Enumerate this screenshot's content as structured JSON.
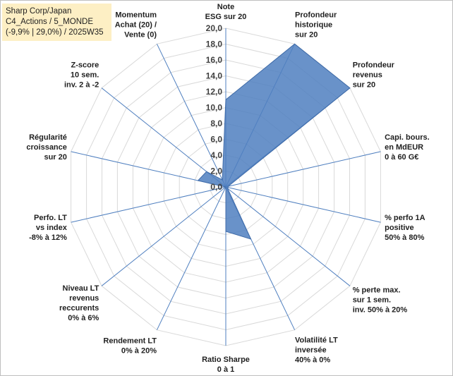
{
  "info": {
    "line1": "Sharp Corp/Japan",
    "line2": "C4_Actions / 5_MONDE",
    "line3": "(-9,9% | 29,0%) / 2025W35"
  },
  "chart_data": {
    "type": "radar",
    "rmin": 0,
    "rmax": 20,
    "tick_step": 2,
    "ticks": [
      "0,0",
      "2,0",
      "4,0",
      "6,0",
      "8,0",
      "10,0",
      "12,0",
      "14,0",
      "16,0",
      "18,0",
      "20,0"
    ],
    "grid": true,
    "axes": [
      {
        "label": [
          "Note",
          "ESG sur 20"
        ],
        "value": 11
      },
      {
        "label": [
          "Profondeur",
          "historique",
          "sur 20"
        ],
        "value": 20
      },
      {
        "label": [
          "Profondeur",
          "revenus",
          "sur 20"
        ],
        "value": 20
      },
      {
        "label": [
          "Capi. bours.",
          "en MdEUR",
          "0 à 60 G€"
        ],
        "value": 0.3
      },
      {
        "label": [
          "% perfo 1A",
          "positive",
          "50% à 80%"
        ],
        "value": 0.3
      },
      {
        "label": [
          "% perte max.",
          "sur 1 sem.",
          "inv. 50% à 20%"
        ],
        "value": 0.3
      },
      {
        "label": [
          "Volatilité LT",
          "inversée",
          "40% à 0%"
        ],
        "value": 7.3
      },
      {
        "label": [
          "Ratio Sharpe",
          "0 à 1"
        ],
        "value": 5.6
      },
      {
        "label": [
          "Rendement LT",
          "0% à 20%"
        ],
        "value": 0
      },
      {
        "label": [
          "Niveau LT",
          "revenus",
          "reccurents",
          "0% à 6%"
        ],
        "value": 0
      },
      {
        "label": [
          "Perfo. LT",
          "vs index",
          "-8% à 12%"
        ],
        "value": 0
      },
      {
        "label": [
          "Régularité",
          "croissance",
          "sur 20"
        ],
        "value": 3.6
      },
      {
        "label": [
          "Z-score",
          "10 sem.",
          "inv. 2 à -2"
        ],
        "value": 3.1
      },
      {
        "label": [
          "Momentum",
          "Achat (20) /",
          "Vente (0)"
        ],
        "value": 1
      }
    ],
    "colors": {
      "fill": "#4f7fbf",
      "stroke": "#3f6ba8",
      "grid": "#d9d9d9",
      "spoke": "#4f7fbf"
    }
  }
}
